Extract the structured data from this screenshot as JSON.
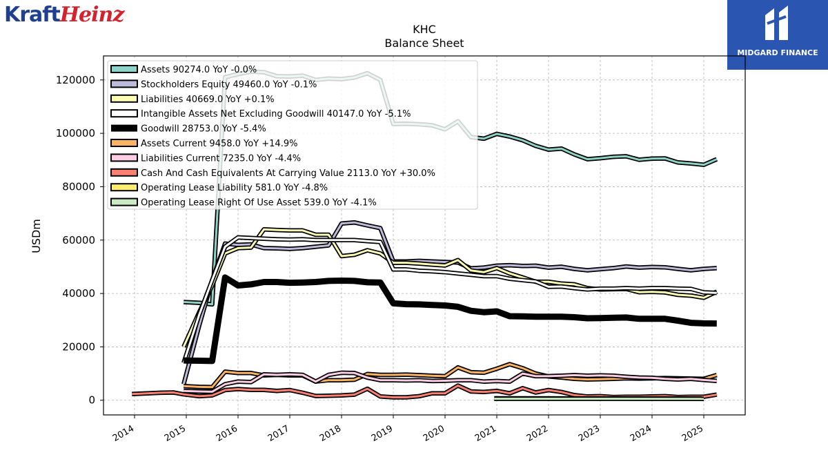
{
  "brand": {
    "name_part1": "Kraft",
    "name_part2": "Heinz"
  },
  "badge": {
    "label": "MIDGARD FINANCE"
  },
  "chart_data": {
    "type": "line",
    "title": "KHC",
    "subtitle": "Balance  Sheet",
    "ylabel": "USDm",
    "ylim": [
      -5500,
      129000
    ],
    "xlim": [
      2013.4,
      2025.8
    ],
    "xticks": [
      "2014",
      "2015",
      "2016",
      "2017",
      "2018",
      "2019",
      "2020",
      "2021",
      "2022",
      "2023",
      "2024",
      "2025"
    ],
    "yticks": [
      0,
      20000,
      40000,
      60000,
      80000,
      100000,
      120000
    ],
    "grid": true,
    "legend_position": "top-left",
    "series": [
      {
        "name": "Assets",
        "label": "Assets  90274.0 YoY -0.0%",
        "color": "#8dd3c7",
        "width": 3,
        "x": [
          2014.95,
          2015.25,
          2015.5,
          2015.75,
          2016.0,
          2016.25,
          2016.5,
          2016.75,
          2017.0,
          2017.25,
          2017.5,
          2017.75,
          2018.0,
          2018.25,
          2018.5,
          2018.75,
          2019.0,
          2019.25,
          2019.5,
          2019.75,
          2020.0,
          2020.25,
          2020.5,
          2020.75,
          2021.0,
          2021.25,
          2021.5,
          2021.75,
          2022.0,
          2022.25,
          2022.5,
          2022.75,
          2023.0,
          2023.25,
          2023.5,
          2023.75,
          2024.0,
          2024.25,
          2024.5,
          2024.75,
          2025.0,
          2025.25
        ],
        "y": [
          36800,
          36500,
          35900,
          121000,
          122200,
          123100,
          122900,
          121400,
          121300,
          121600,
          120000,
          120500,
          120300,
          120900,
          122500,
          120000,
          103500,
          103600,
          103400,
          103000,
          101500,
          104500,
          98600,
          98000,
          99800,
          98800,
          97400,
          95300,
          93900,
          94300,
          92100,
          90300,
          90700,
          91200,
          91400,
          90100,
          90500,
          90600,
          89100,
          88700,
          88200,
          90300
        ]
      },
      {
        "name": "Stockholders Equity",
        "label": "Stockholders Equity  49460.0 YoY -0.1%",
        "color": "#bebada",
        "width": 3,
        "x": [
          2014.95,
          2015.25,
          2015.5,
          2015.75,
          2016.0,
          2016.25,
          2016.5,
          2016.75,
          2017.0,
          2017.25,
          2017.5,
          2017.75,
          2018.0,
          2018.25,
          2018.5,
          2018.75,
          2019.0,
          2019.25,
          2019.5,
          2019.75,
          2020.0,
          2020.25,
          2020.5,
          2020.75,
          2021.0,
          2021.25,
          2021.5,
          2021.75,
          2022.0,
          2022.25,
          2022.5,
          2022.75,
          2023.0,
          2023.25,
          2023.5,
          2023.75,
          2024.0,
          2024.25,
          2024.5,
          2024.75,
          2025.0,
          2025.25
        ],
        "y": [
          6000,
          28000,
          45000,
          58700,
          58200,
          58400,
          57000,
          56900,
          56700,
          57000,
          57500,
          58000,
          66200,
          66600,
          65500,
          64500,
          52000,
          52000,
          52200,
          52000,
          51800,
          51600,
          49400,
          49700,
          50400,
          50600,
          50300,
          50400,
          49700,
          50000,
          49200,
          48700,
          49100,
          49500,
          50100,
          49700,
          49900,
          49800,
          49200,
          48700,
          49200,
          49500
        ]
      },
      {
        "name": "Liabilities",
        "label": "Liabilities  40669.0 YoY +0.1%",
        "color": "#ffffb3",
        "width": 3,
        "x": [
          2014.95,
          2015.25,
          2015.5,
          2015.75,
          2016.0,
          2016.25,
          2016.5,
          2016.75,
          2017.0,
          2017.25,
          2017.5,
          2017.75,
          2018.0,
          2018.25,
          2018.5,
          2018.75,
          2019.0,
          2019.25,
          2019.5,
          2019.75,
          2020.0,
          2020.25,
          2020.5,
          2020.75,
          2021.0,
          2021.25,
          2021.5,
          2021.75,
          2022.0,
          2022.25,
          2022.5,
          2022.75,
          2023.0,
          2023.25,
          2023.5,
          2023.75,
          2024.0,
          2024.25,
          2024.5,
          2024.75,
          2025.0,
          2025.25
        ],
        "y": [
          20000,
          33000,
          43000,
          55000,
          57000,
          57200,
          64000,
          63800,
          63600,
          63600,
          62000,
          62000,
          54000,
          54500,
          56200,
          55000,
          51500,
          51500,
          51200,
          50800,
          50500,
          52500,
          48600,
          48000,
          49500,
          47500,
          46000,
          44400,
          44400,
          43700,
          43400,
          42000,
          41500,
          41600,
          41700,
          40500,
          40600,
          40400,
          39500,
          39200,
          38400,
          40700
        ]
      },
      {
        "name": "Intangible Assets Net Excluding Goodwill",
        "label": "Intangible Assets Net Excluding Goodwill  40147.0 YoY -5.1%",
        "color": "#ffffff",
        "width": 3,
        "x": [
          2014.95,
          2015.25,
          2015.5,
          2015.75,
          2016.0,
          2016.25,
          2016.5,
          2016.75,
          2017.0,
          2017.25,
          2017.5,
          2017.75,
          2018.0,
          2018.25,
          2018.5,
          2018.75,
          2019.0,
          2019.25,
          2019.5,
          2019.75,
          2020.0,
          2020.25,
          2020.5,
          2020.75,
          2021.0,
          2021.25,
          2021.5,
          2021.75,
          2022.0,
          2022.25,
          2022.5,
          2022.75,
          2023.0,
          2023.25,
          2023.5,
          2023.75,
          2024.0,
          2024.25,
          2024.5,
          2024.75,
          2025.0,
          2025.25
        ],
        "y": [
          14000,
          32000,
          45000,
          57500,
          61000,
          60800,
          60500,
          60300,
          60200,
          60300,
          60000,
          60000,
          60000,
          60000,
          59600,
          59300,
          49000,
          49000,
          48500,
          48300,
          48000,
          47500,
          47000,
          46500,
          46500,
          45500,
          45000,
          44500,
          42500,
          42600,
          42000,
          41500,
          41800,
          41800,
          42000,
          41800,
          42000,
          42000,
          41800,
          41700,
          40400,
          40200
        ]
      },
      {
        "name": "Goodwill",
        "label": "Goodwill  28753.0 YoY -5.4%",
        "color": "#000000",
        "width": 9,
        "x": [
          2014.95,
          2015.25,
          2015.5,
          2015.75,
          2016.0,
          2016.25,
          2016.5,
          2016.75,
          2017.0,
          2017.25,
          2017.5,
          2017.75,
          2018.0,
          2018.25,
          2018.5,
          2018.75,
          2019.0,
          2019.25,
          2019.5,
          2019.75,
          2020.0,
          2020.25,
          2020.5,
          2020.75,
          2021.0,
          2021.25,
          2021.5,
          2021.75,
          2022.0,
          2022.25,
          2022.5,
          2022.75,
          2023.0,
          2023.25,
          2023.5,
          2023.75,
          2024.0,
          2024.25,
          2024.5,
          2024.75,
          2025.0,
          2025.25
        ],
        "y": [
          14900,
          14800,
          14700,
          46000,
          43000,
          43400,
          44300,
          44300,
          44000,
          44100,
          44300,
          44700,
          44800,
          44700,
          44200,
          44100,
          36300,
          36000,
          35900,
          35700,
          35500,
          35000,
          33500,
          33000,
          33300,
          31500,
          31400,
          31300,
          31300,
          31300,
          31100,
          30700,
          30800,
          30900,
          31000,
          30500,
          30500,
          30500,
          29800,
          29000,
          28800,
          28753
        ]
      },
      {
        "name": "Assets Current",
        "label": "Assets Current  9458.0 YoY +14.9%",
        "color": "#fdb462",
        "width": 3,
        "x": [
          2014.95,
          2015.25,
          2015.5,
          2015.75,
          2016.0,
          2016.25,
          2016.5,
          2016.75,
          2017.0,
          2017.25,
          2017.5,
          2017.75,
          2018.0,
          2018.25,
          2018.5,
          2018.75,
          2019.0,
          2019.25,
          2019.5,
          2019.75,
          2020.0,
          2020.25,
          2020.5,
          2020.75,
          2021.0,
          2021.25,
          2021.5,
          2021.75,
          2022.0,
          2022.25,
          2022.5,
          2022.75,
          2023.0,
          2023.25,
          2023.5,
          2023.75,
          2024.0,
          2024.25,
          2024.5,
          2024.75,
          2025.0,
          2025.25
        ],
        "y": [
          5300,
          5000,
          4900,
          10700,
          10200,
          10200,
          9300,
          9500,
          9300,
          9300,
          7000,
          7500,
          7500,
          7700,
          9800,
          9500,
          9500,
          9600,
          9400,
          9200,
          9000,
          12300,
          10500,
          10300,
          11800,
          13500,
          12000,
          10000,
          8900,
          8500,
          8000,
          7800,
          7900,
          8000,
          8200,
          8100,
          8200,
          8300,
          8200,
          8100,
          8000,
          9458
        ]
      },
      {
        "name": "Liabilities Current",
        "label": "Liabilities Current  7235.0 YoY -4.4%",
        "color": "#fccde5",
        "width": 3,
        "x": [
          2014.95,
          2015.25,
          2015.5,
          2015.75,
          2016.0,
          2016.25,
          2016.5,
          2016.75,
          2017.0,
          2017.25,
          2017.5,
          2017.75,
          2018.0,
          2018.25,
          2018.5,
          2018.75,
          2019.0,
          2019.25,
          2019.5,
          2019.75,
          2020.0,
          2020.25,
          2020.5,
          2020.75,
          2021.0,
          2021.25,
          2021.5,
          2021.75,
          2022.0,
          2022.25,
          2022.5,
          2022.75,
          2023.0,
          2023.25,
          2023.5,
          2023.75,
          2024.0,
          2024.25,
          2024.5,
          2024.75,
          2025.0,
          2025.25
        ],
        "y": [
          3500,
          3300,
          3200,
          6000,
          7000,
          6800,
          9700,
          9500,
          9700,
          9500,
          7000,
          9500,
          10300,
          10200,
          8500,
          7500,
          7500,
          7400,
          7500,
          7200,
          7300,
          7500,
          7500,
          7000,
          7200,
          7000,
          10000,
          9000,
          9000,
          9200,
          9400,
          9200,
          9300,
          9200,
          8800,
          8500,
          8400,
          8000,
          7800,
          8000,
          7600,
          7235
        ]
      },
      {
        "name": "Cash And Cash Equivalents At Carrying Value",
        "label": "Cash And Cash Equivalents At Carrying Value  2113.0 YoY +30.0%",
        "color": "#fb8072",
        "width": 3,
        "x": [
          2013.95,
          2014.25,
          2014.5,
          2014.75,
          2014.95,
          2015.25,
          2015.5,
          2015.75,
          2016.0,
          2016.25,
          2016.5,
          2016.75,
          2017.0,
          2017.25,
          2017.5,
          2017.75,
          2018.0,
          2018.25,
          2018.5,
          2018.75,
          2019.0,
          2019.25,
          2019.5,
          2019.75,
          2020.0,
          2020.25,
          2020.5,
          2020.75,
          2021.0,
          2021.25,
          2021.5,
          2021.75,
          2022.0,
          2022.25,
          2022.5,
          2022.75,
          2023.0,
          2023.25,
          2023.5,
          2023.75,
          2024.0,
          2024.25,
          2024.5,
          2024.75,
          2025.0,
          2025.25
        ],
        "y": [
          2300,
          2600,
          2800,
          2900,
          2200,
          1500,
          1800,
          3800,
          4200,
          3900,
          3900,
          3500,
          3800,
          2800,
          1600,
          1700,
          1800,
          2100,
          4300,
          1400,
          1100,
          1100,
          1500,
          2600,
          2600,
          5500,
          3300,
          3100,
          3500,
          2600,
          4500,
          2900,
          3800,
          3100,
          1900,
          1400,
          1500,
          1200,
          1300,
          1300,
          1400,
          1500,
          1200,
          1300,
          1300,
          2113
        ]
      },
      {
        "name": "Operating Lease Liability",
        "label": "Operating Lease Liability  581.0 YoY -4.8%",
        "color": "#ffed6f",
        "width": 3,
        "x": [
          2020.95,
          2025.0
        ],
        "y": [
          700,
          600
        ]
      },
      {
        "name": "Operating Lease Right Of Use Asset",
        "label": "Operating Lease Right Of Use Asset  539.0 YoY -4.1%",
        "color": "#ccebc5",
        "width": 3,
        "x": [
          2020.95,
          2025.0
        ],
        "y": [
          550,
          520
        ]
      }
    ]
  }
}
